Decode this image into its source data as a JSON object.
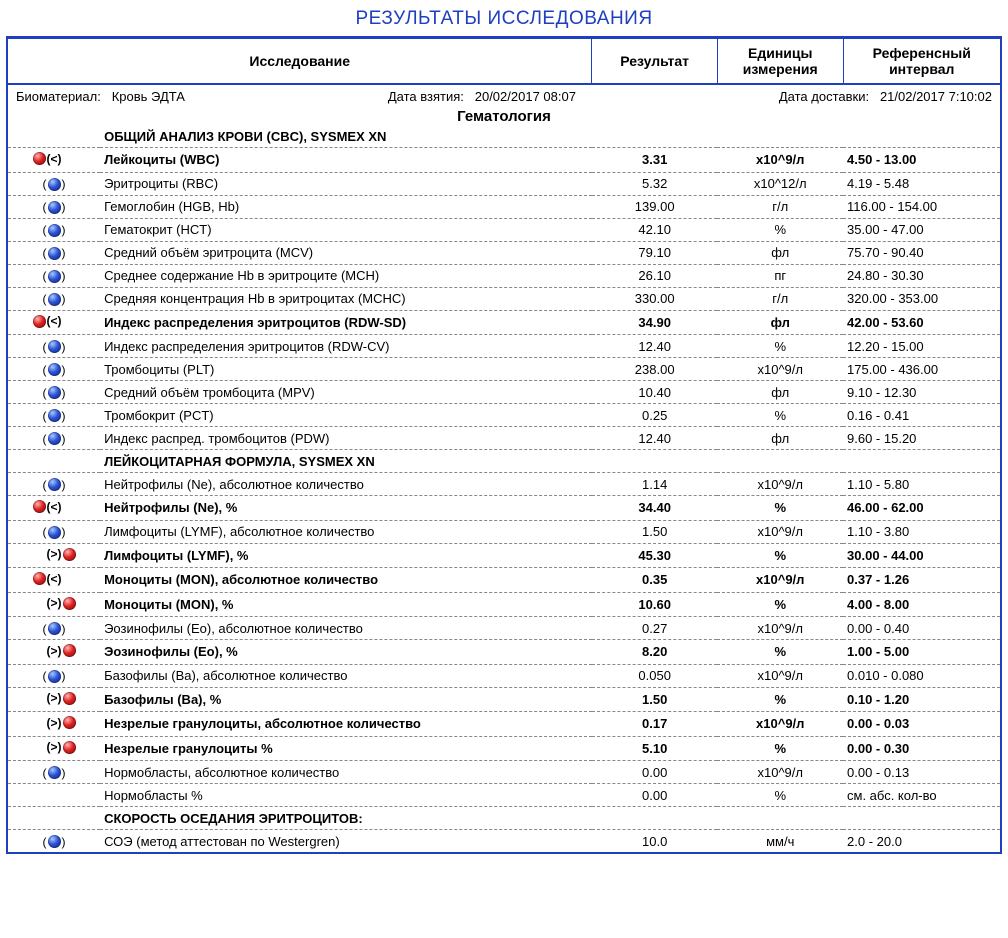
{
  "title": "РЕЗУЛЬТАТЫ ИССЛЕДОВАНИЯ",
  "columns": {
    "research": "Исследование",
    "result": "Результат",
    "units": "Единицы измерения",
    "reference": "Референсный интервал"
  },
  "meta": {
    "biomaterial_label": "Биоматериал:",
    "biomaterial_value": "Кровь ЭДТА",
    "date_taken_label": "Дата взятия:",
    "date_taken_value": "20/02/2017 08:07",
    "date_delivered_label": "Дата доставки:",
    "date_delivered_value": "21/02/2017 7:10:02"
  },
  "section_title": "Гематология",
  "group1": "ОБЩИЙ АНАЛИЗ КРОВИ (CBC), SYSMEX XN",
  "group2": "ЛЕЙКОЦИТАРНАЯ ФОРМУЛА, SYSMEX XN",
  "group3": "СКОРОСТЬ ОСЕДАНИЯ ЭРИТРОЦИТОВ:",
  "rows": {
    "wbc": {
      "flag": "low",
      "name": "Лейкоциты (WBC)",
      "res": "3.31",
      "unit": "x10^9/л",
      "ref": "4.50 - 13.00"
    },
    "rbc": {
      "flag": "normal",
      "name": "Эритроциты (RBC)",
      "res": "5.32",
      "unit": "x10^12/л",
      "ref": "4.19 - 5.48"
    },
    "hgb": {
      "flag": "normal",
      "name": "Гемоглобин (HGB, Hb)",
      "res": "139.00",
      "unit": "г/л",
      "ref": "116.00 - 154.00"
    },
    "hct": {
      "flag": "normal",
      "name": "Гематокрит (HCT)",
      "res": "42.10",
      "unit": "%",
      "ref": "35.00 - 47.00"
    },
    "mcv": {
      "flag": "normal",
      "name": "Средний объём эритроцита (MCV)",
      "res": "79.10",
      "unit": "фл",
      "ref": "75.70 - 90.40"
    },
    "mch": {
      "flag": "normal",
      "name": "Среднее содержание Hb в эритроците (MCH)",
      "res": "26.10",
      "unit": "пг",
      "ref": "24.80 - 30.30"
    },
    "mchc": {
      "flag": "normal",
      "name": "Средняя концентрация Hb в эритроцитах (MCHC)",
      "res": "330.00",
      "unit": "г/л",
      "ref": "320.00 - 353.00"
    },
    "rdwsd": {
      "flag": "low",
      "name": "Индекс распределения эритроцитов (RDW-SD)",
      "res": "34.90",
      "unit": "фл",
      "ref": "42.00 - 53.60"
    },
    "rdwcv": {
      "flag": "normal",
      "name": "Индекс распределения эритроцитов (RDW-CV)",
      "res": "12.40",
      "unit": "%",
      "ref": "12.20 - 15.00"
    },
    "plt": {
      "flag": "normal",
      "name": "Тромбоциты (PLT)",
      "res": "238.00",
      "unit": "x10^9/л",
      "ref": "175.00 - 436.00"
    },
    "mpv": {
      "flag": "normal",
      "name": "Средний объём тромбоцита (MPV)",
      "res": "10.40",
      "unit": "фл",
      "ref": "9.10 - 12.30"
    },
    "pct": {
      "flag": "normal",
      "name": "Тромбокрит (PCT)",
      "res": "0.25",
      "unit": "%",
      "ref": "0.16 - 0.41"
    },
    "pdw": {
      "flag": "normal",
      "name": "Индекс распред. тромбоцитов (PDW)",
      "res": "12.40",
      "unit": "фл",
      "ref": "9.60 - 15.20"
    },
    "ne_abs": {
      "flag": "normal",
      "name": "Нейтрофилы (Ne), абсолютное количество",
      "res": "1.14",
      "unit": "x10^9/л",
      "ref": "1.10 - 5.80"
    },
    "ne_pct": {
      "flag": "low",
      "name": "Нейтрофилы (Ne), %",
      "res": "34.40",
      "unit": "%",
      "ref": "46.00 - 62.00"
    },
    "lymf_abs": {
      "flag": "normal",
      "name": "Лимфоциты (LYMF), абсолютное количество",
      "res": "1.50",
      "unit": "x10^9/л",
      "ref": "1.10 - 3.80"
    },
    "lymf_pct": {
      "flag": "high",
      "name": "Лимфоциты (LYMF), %",
      "res": "45.30",
      "unit": "%",
      "ref": "30.00 - 44.00"
    },
    "mon_abs": {
      "flag": "low",
      "name": "Моноциты (MON), абсолютное количество",
      "res": "0.35",
      "unit": "x10^9/л",
      "ref": "0.37 - 1.26"
    },
    "mon_pct": {
      "flag": "high",
      "name": "Моноциты (MON), %",
      "res": "10.60",
      "unit": "%",
      "ref": "4.00 - 8.00"
    },
    "eo_abs": {
      "flag": "normal",
      "name": "Эозинофилы (Eo), абсолютное количество",
      "res": "0.27",
      "unit": "x10^9/л",
      "ref": "0.00 - 0.40"
    },
    "eo_pct": {
      "flag": "high",
      "name": "Эозинофилы (Eo), %",
      "res": "8.20",
      "unit": "%",
      "ref": "1.00 - 5.00"
    },
    "ba_abs": {
      "flag": "normal",
      "name": "Базофилы (Ba), абсолютное количество",
      "res": "0.050",
      "unit": "x10^9/л",
      "ref": "0.010 - 0.080"
    },
    "ba_pct": {
      "flag": "high",
      "name": "Базофилы (Ba), %",
      "res": "1.50",
      "unit": "%",
      "ref": "0.10 - 1.20"
    },
    "ig_abs": {
      "flag": "high",
      "name": "Незрелые гранулоциты, абсолютное количество",
      "res": "0.17",
      "unit": "x10^9/л",
      "ref": "0.00 - 0.03"
    },
    "ig_pct": {
      "flag": "high",
      "name": "Незрелые гранулоциты %",
      "res": "5.10",
      "unit": "%",
      "ref": "0.00 - 0.30"
    },
    "nrbc_abs": {
      "flag": "normal",
      "name": "Нормобласты, абсолютное количество",
      "res": "0.00",
      "unit": "x10^9/л",
      "ref": "0.00 - 0.13"
    },
    "nrbc_pct": {
      "flag": "",
      "name": "Нормобласты %",
      "res": "0.00",
      "unit": "%",
      "ref": "см. абс. кол-во"
    },
    "esr": {
      "flag": "normal",
      "name": "СОЭ (метод аттестован по Westergren)",
      "res": "10.0",
      "unit": "мм/ч",
      "ref": "2.0 - 20.0"
    }
  },
  "flag_labels": {
    "low": "<",
    "high": ">",
    "normal": ""
  }
}
